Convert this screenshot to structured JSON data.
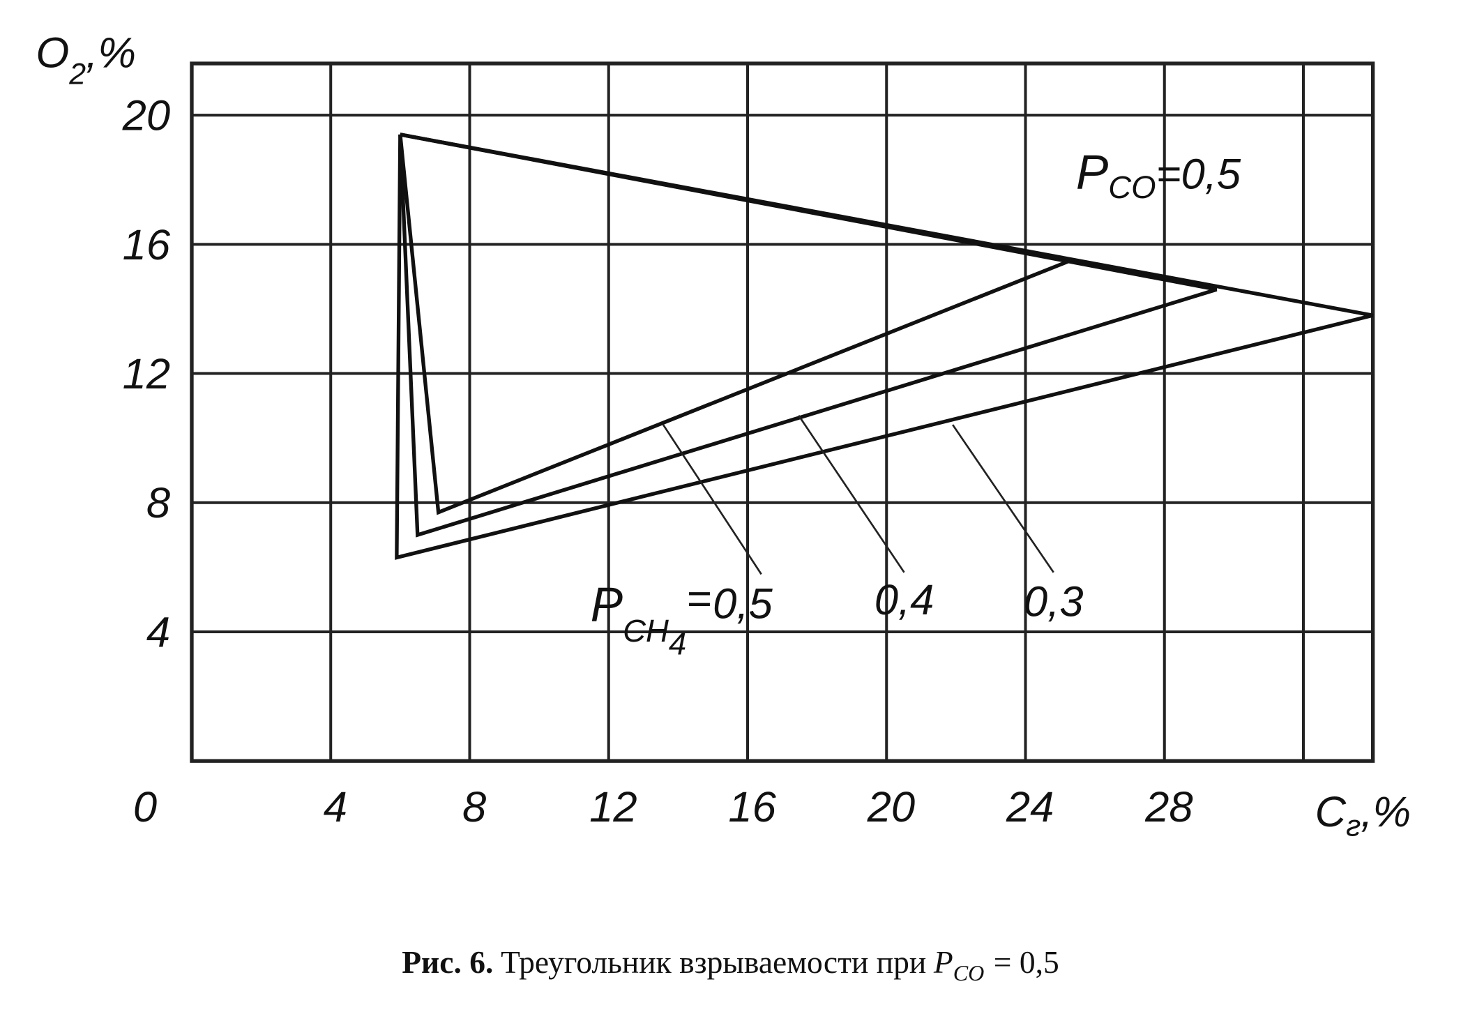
{
  "chart_data": {
    "type": "line",
    "x_label": [
      "C",
      "г",
      ",%"
    ],
    "y_label": [
      "O",
      "2",
      ",%"
    ],
    "xlim": [
      0,
      34
    ],
    "ylim": [
      0,
      21.6
    ],
    "xticks": [
      0,
      4,
      8,
      12,
      16,
      20,
      24,
      28,
      {
        "value": 32,
        "label": null
      }
    ],
    "yticks": [
      4,
      8,
      12,
      16,
      20
    ],
    "grid": true,
    "color": "#111111",
    "series": [
      {
        "name": "0,5",
        "x": [
          6.0,
          25.3,
          7.1,
          6.0
        ],
        "values": [
          19.4,
          15.5,
          7.7,
          19.4
        ]
      },
      {
        "name": "0,4",
        "x": [
          6.0,
          29.5,
          6.5,
          6.0
        ],
        "values": [
          19.4,
          14.6,
          7.0,
          19.4
        ]
      },
      {
        "name": "0,3",
        "x": [
          6.0,
          34.0,
          5.9,
          6.0
        ],
        "values": [
          19.4,
          13.8,
          6.3,
          19.4
        ]
      }
    ],
    "annotations": {
      "p_co": [
        "P",
        "CO",
        "=0,5"
      ],
      "p_ch4": [
        "P",
        "CH",
        "4",
        "="
      ]
    }
  },
  "caption": {
    "bold": "Рис. 6.",
    "text": "Треугольник взрываемости при",
    "var": "P",
    "sub": "CO",
    "rest": "= 0,5"
  }
}
